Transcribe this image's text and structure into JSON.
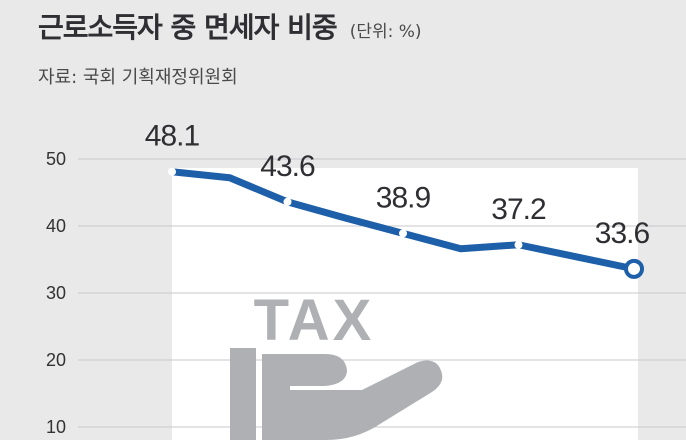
{
  "header": {
    "title": "근로소득자 중 면세자 비중",
    "unit": "(단위: %)",
    "source": "자료: 국회 기획재정위원회"
  },
  "illustration": {
    "text": "TAX",
    "icon": "hand-holding-tax-icon"
  },
  "colors": {
    "line": "#1d5fa8",
    "background": "#e9e9ea",
    "panel": "#ffffff",
    "illustration": "#aeb0b3"
  },
  "chart_data": {
    "type": "line",
    "title": "근로소득자 중 면세자 비중",
    "unit": "%",
    "ylim": [
      10,
      50
    ],
    "yticks": [
      10,
      20,
      30,
      40,
      50
    ],
    "grid": true,
    "series": [
      {
        "values": [
          48.1,
          47.2,
          43.6,
          41.2,
          38.9,
          36.6,
          37.2,
          35.4,
          33.6
        ],
        "labels": [
          "48.1",
          "",
          "43.6",
          "",
          "38.9",
          "",
          "37.2",
          "",
          "33.6"
        ]
      }
    ]
  }
}
